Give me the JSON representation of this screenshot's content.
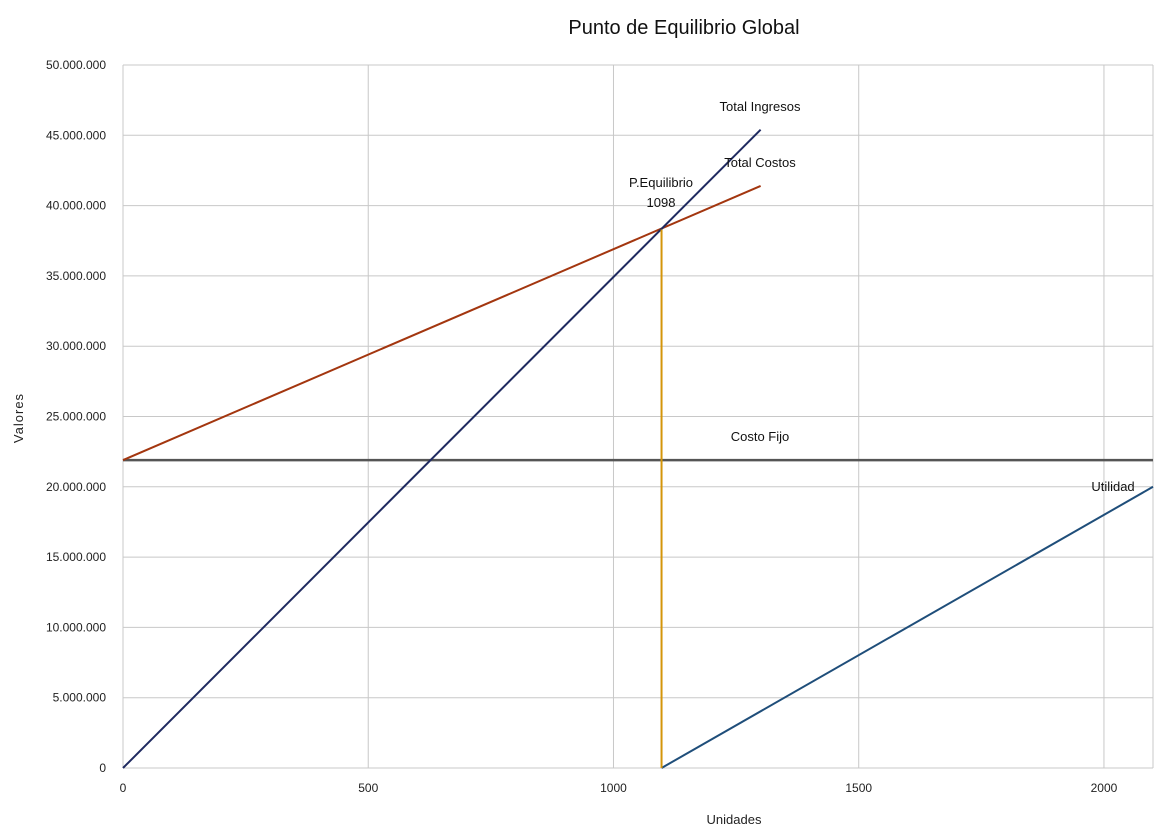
{
  "chart_data": {
    "type": "line",
    "title": "Punto de Equilibrio Global",
    "xlabel": "Unidades",
    "ylabel": "Valores",
    "xlim": [
      0,
      2100
    ],
    "ylim": [
      0,
      50000000
    ],
    "x_ticks": [
      0,
      500,
      1000,
      1500,
      2000
    ],
    "x_tick_labels": [
      "0",
      "500",
      "1000",
      "1500",
      "2000"
    ],
    "y_ticks": [
      0,
      5000000,
      10000000,
      15000000,
      20000000,
      25000000,
      30000000,
      35000000,
      40000000,
      45000000,
      50000000
    ],
    "y_tick_labels": [
      "0",
      "5.000.000",
      "10.000.000",
      "15.000.000",
      "20.000.000",
      "25.000.000",
      "30.000.000",
      "35.000.000",
      "40.000.000",
      "45.000.000",
      "50.000.000"
    ],
    "grid": true,
    "legend": "none",
    "series": [
      {
        "name": "Total Ingresos",
        "color": "#1f2a60",
        "points": [
          [
            0,
            0
          ],
          [
            1300,
            45400000
          ]
        ]
      },
      {
        "name": "Total Costos",
        "color": "#a3360f",
        "points": [
          [
            0,
            21900000
          ],
          [
            1300,
            41400000
          ]
        ]
      },
      {
        "name": "Costo Fijo",
        "color": "#555555",
        "points": [
          [
            0,
            21900000
          ],
          [
            2100,
            21900000
          ]
        ]
      },
      {
        "name": "Utilidad",
        "color": "#1f4e7a",
        "points": [
          [
            1098,
            0
          ],
          [
            2100,
            20000000
          ]
        ]
      }
    ],
    "breakeven": {
      "label": "P.Equilibrio",
      "value_label": "1098",
      "x": 1098,
      "y": 38300000,
      "color": "#d4950a"
    }
  }
}
